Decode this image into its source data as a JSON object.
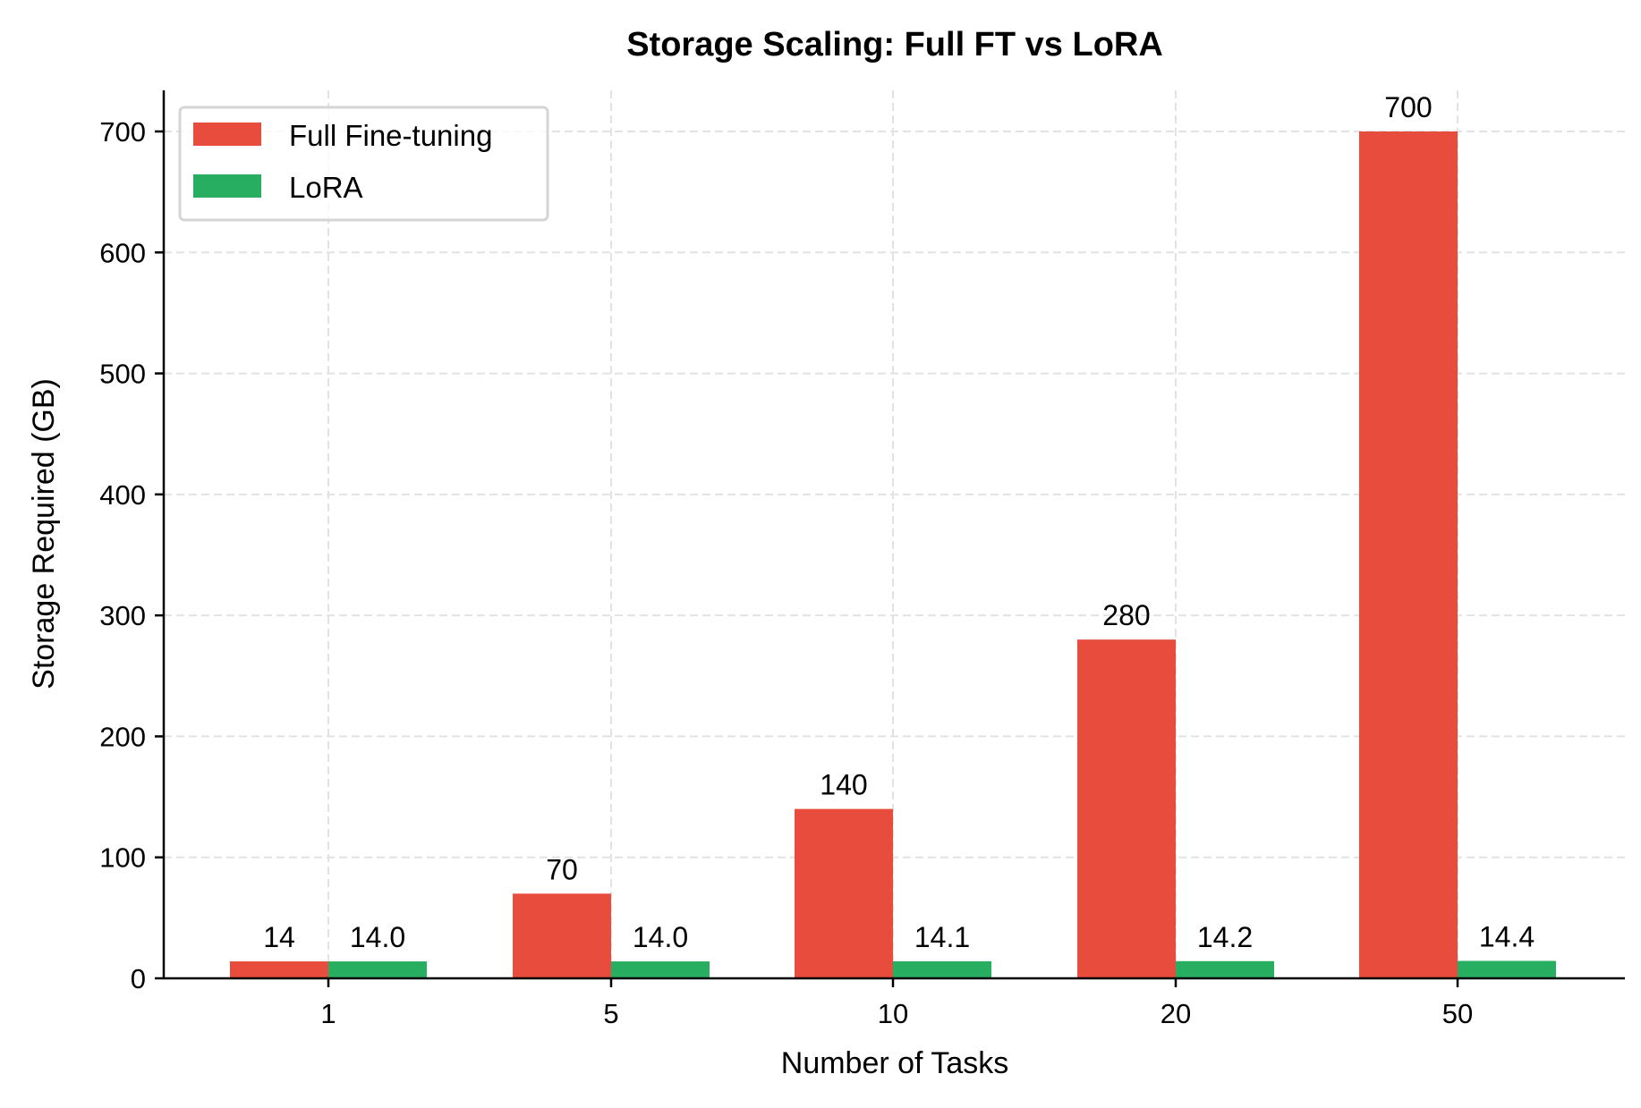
{
  "chart_data": {
    "type": "bar",
    "title": "Storage Scaling: Full FT vs LoRA",
    "xlabel": "Number of Tasks",
    "ylabel": "Storage Required (GB)",
    "categories": [
      "1",
      "5",
      "10",
      "20",
      "50"
    ],
    "series": [
      {
        "name": "Full Fine-tuning",
        "color": "#e74c3c",
        "values": [
          14,
          70,
          140,
          280,
          700
        ],
        "labels": [
          "14",
          "70",
          "140",
          "280",
          "700"
        ]
      },
      {
        "name": "LoRA",
        "color": "#27ae60",
        "values": [
          14.0,
          14.0,
          14.1,
          14.2,
          14.4
        ],
        "labels": [
          "14.0",
          "14.0",
          "14.1",
          "14.2",
          "14.4"
        ]
      }
    ],
    "ylim": [
      0,
      735
    ],
    "yticks": [
      0,
      100,
      200,
      300,
      400,
      500,
      600,
      700
    ],
    "grid": true,
    "grid_style": "dashed",
    "legend_placement": "top-left"
  }
}
